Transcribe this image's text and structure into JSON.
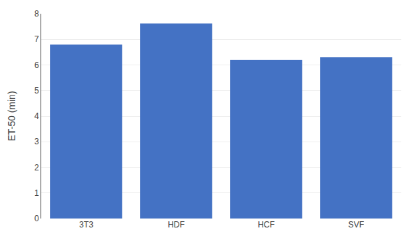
{
  "chart_data": {
    "type": "bar",
    "categories": [
      "3T3",
      "HDF",
      "HCF",
      "SVF"
    ],
    "values": [
      6.8,
      7.62,
      6.2,
      6.3
    ],
    "color": "#4472C4",
    "ylabel": "ET-50 (min)",
    "ylim": [
      0,
      8
    ],
    "yticks": [
      0,
      1,
      2,
      3,
      4,
      5,
      6,
      7,
      8
    ],
    "grid": true
  }
}
